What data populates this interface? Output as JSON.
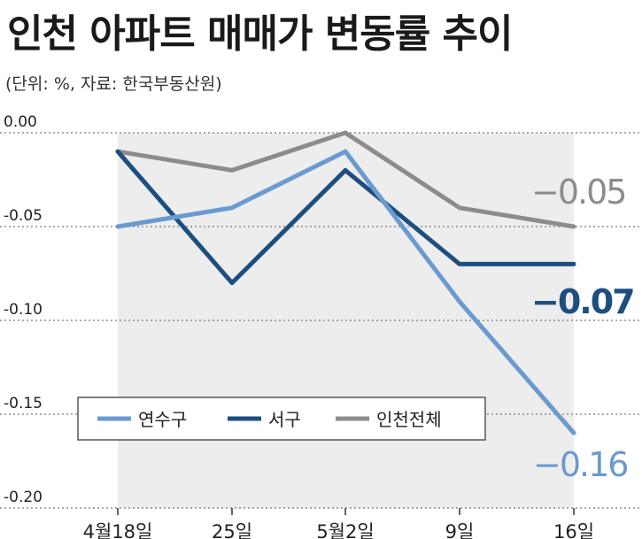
{
  "chart_data": {
    "type": "line",
    "title": "인천 아파트 매매가 변동률 추이",
    "subtitle": "(단위: %, 자료: 한국부동산원)",
    "x": [
      "4월18일",
      "25일",
      "5월2일",
      "9일",
      "16일"
    ],
    "y_ticks": [
      "0.00",
      "-0.05",
      "-0.10",
      "-0.15",
      "-0.20"
    ],
    "ylim": [
      -0.2,
      0
    ],
    "grid": "horizontal dotted",
    "legend_position": "bottom-center",
    "series": [
      {
        "name": "연수구",
        "color": "#6a9ad0",
        "values": [
          -0.05,
          -0.04,
          -0.01,
          -0.09,
          -0.16
        ],
        "end_label": "-0.16"
      },
      {
        "name": "서구",
        "color": "#1d4e80",
        "values": [
          -0.01,
          -0.08,
          -0.02,
          -0.07,
          -0.07
        ],
        "end_label": "-0.07"
      },
      {
        "name": "인천전체",
        "color": "#8c8c8c",
        "values": [
          -0.01,
          -0.02,
          0.0,
          -0.04,
          -0.05
        ],
        "end_label": "-0.05"
      }
    ]
  }
}
